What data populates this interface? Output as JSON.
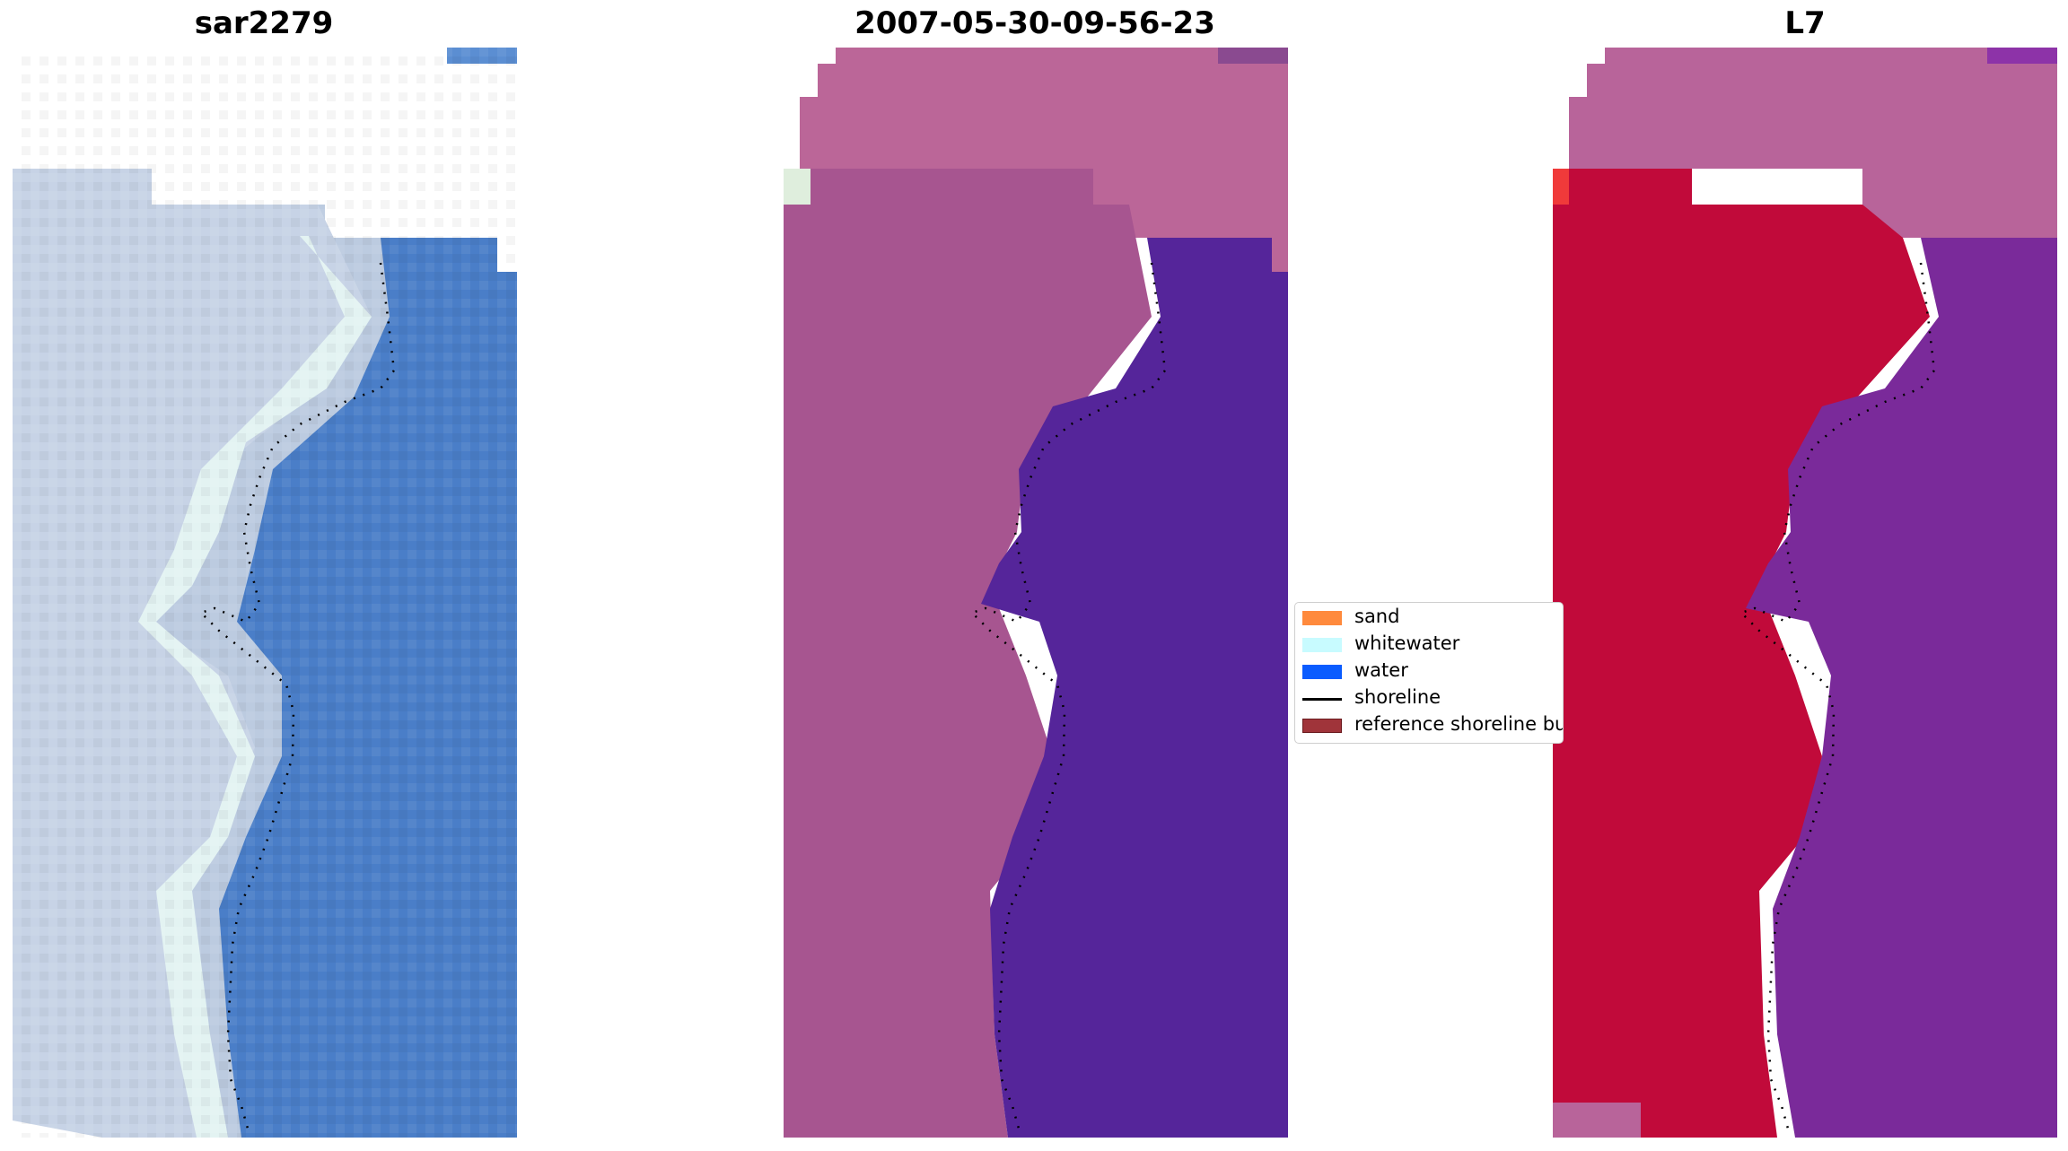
{
  "panels": [
    {
      "id": "rgb",
      "title": "sar2279"
    },
    {
      "id": "classified",
      "title": "2007-05-30-09-56-23"
    },
    {
      "id": "mndwi",
      "title": "L7"
    }
  ],
  "legend": {
    "items": [
      {
        "label": "sand",
        "color": "#ff8a3d",
        "kind": "patch"
      },
      {
        "label": "whitewater",
        "color": "#c8fbff",
        "kind": "patch"
      },
      {
        "label": "water",
        "color": "#0a5cff",
        "kind": "patch"
      },
      {
        "label": "shoreline",
        "color": "#000000",
        "kind": "line"
      },
      {
        "label": "reference shoreline buffer",
        "color": "#a0343a",
        "kind": "patch"
      }
    ]
  },
  "colors": {
    "water_rgb": "#4a7ec8",
    "beach_rgb": "#b9c9de",
    "classified_land": "#b8679a",
    "classified_water": "#55259a",
    "index_land": "#c50a3a",
    "index_water": "#7a2a9a"
  }
}
